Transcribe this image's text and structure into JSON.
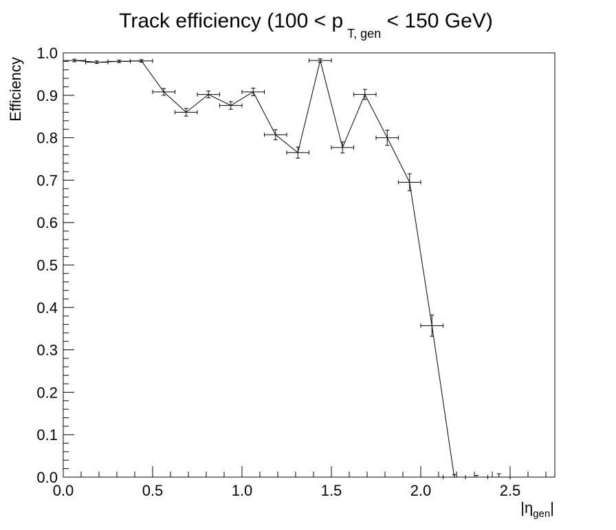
{
  "chart_data": {
    "type": "line",
    "title": {
      "prefix": "Track efficiency (100 < p",
      "subscript": "T, gen",
      "suffix": " < 150 GeV)"
    },
    "xlabel": {
      "open": "|η",
      "subscript": "gen",
      "close": "|"
    },
    "ylabel": "Efficiency",
    "xlim": [
      0,
      2.75
    ],
    "ylim": [
      0,
      1.0
    ],
    "xticks": [
      {
        "value": 0.0,
        "label": "0.0"
      },
      {
        "value": 0.5,
        "label": "0.5"
      },
      {
        "value": 1.0,
        "label": "1.0"
      },
      {
        "value": 1.5,
        "label": "1.5"
      },
      {
        "value": 2.0,
        "label": "2.0"
      },
      {
        "value": 2.5,
        "label": "2.5"
      }
    ],
    "yticks": [
      {
        "value": 0.0,
        "label": "0.0"
      },
      {
        "value": 0.1,
        "label": "0.1"
      },
      {
        "value": 0.2,
        "label": "0.2"
      },
      {
        "value": 0.3,
        "label": "0.3"
      },
      {
        "value": 0.4,
        "label": "0.4"
      },
      {
        "value": 0.5,
        "label": "0.5"
      },
      {
        "value": 0.6,
        "label": "0.6"
      },
      {
        "value": 0.7,
        "label": "0.7"
      },
      {
        "value": 0.8,
        "label": "0.8"
      },
      {
        "value": 0.9,
        "label": "0.9"
      },
      {
        "value": 1.0,
        "label": "1.0"
      }
    ],
    "x_bin_half_width": 0.0625,
    "series": [
      {
        "color": "#000000",
        "points": [
          {
            "x": 0.0625,
            "y": 0.982,
            "err": 0.003
          },
          {
            "x": 0.1875,
            "y": 0.978,
            "err": 0.003
          },
          {
            "x": 0.3125,
            "y": 0.98,
            "err": 0.003
          },
          {
            "x": 0.4375,
            "y": 0.981,
            "err": 0.003
          },
          {
            "x": 0.5625,
            "y": 0.908,
            "err": 0.008
          },
          {
            "x": 0.6875,
            "y": 0.86,
            "err": 0.009
          },
          {
            "x": 0.8125,
            "y": 0.902,
            "err": 0.008
          },
          {
            "x": 0.9375,
            "y": 0.876,
            "err": 0.009
          },
          {
            "x": 1.0625,
            "y": 0.908,
            "err": 0.009
          },
          {
            "x": 1.1875,
            "y": 0.807,
            "err": 0.012
          },
          {
            "x": 1.3125,
            "y": 0.765,
            "err": 0.013
          },
          {
            "x": 1.4375,
            "y": 0.982,
            "err": 0.004
          },
          {
            "x": 1.5625,
            "y": 0.777,
            "err": 0.013
          },
          {
            "x": 1.6875,
            "y": 0.902,
            "err": 0.012
          },
          {
            "x": 1.8125,
            "y": 0.8,
            "err": 0.018
          },
          {
            "x": 1.9375,
            "y": 0.695,
            "err": 0.02
          },
          {
            "x": 2.0625,
            "y": 0.357,
            "err": 0.025
          },
          {
            "x": 2.1875,
            "y": 0.0,
            "err": 0.006
          },
          {
            "x": 2.3125,
            "y": 0.0,
            "err": 0.004
          },
          {
            "x": 2.4375,
            "y": 0.0,
            "err": 0.008
          }
        ]
      }
    ],
    "grid": false,
    "legend": "none"
  }
}
